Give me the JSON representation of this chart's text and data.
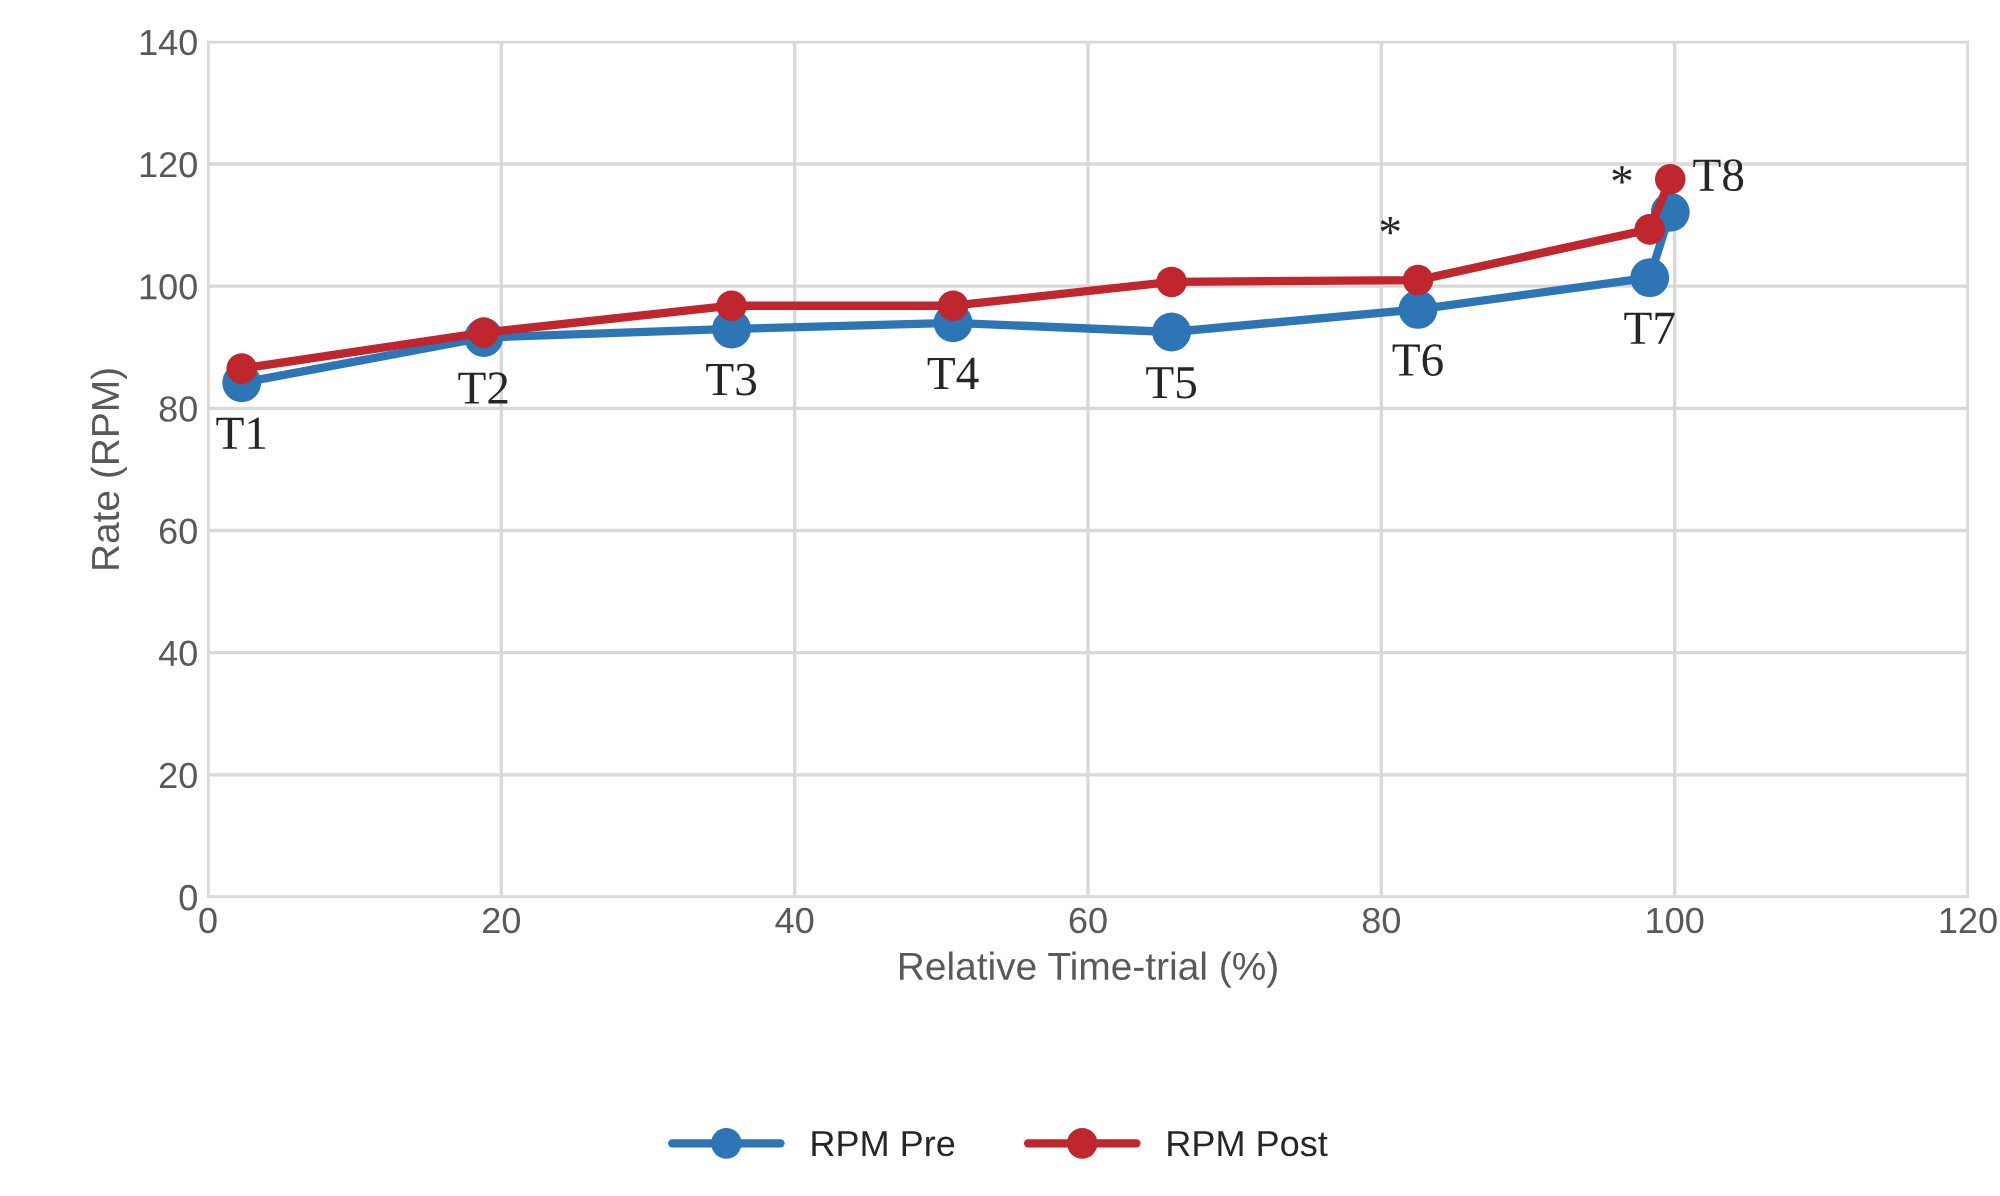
{
  "chart_data": {
    "type": "line",
    "xlabel": "Relative Time-trial (%)",
    "ylabel": "Rate (RPM)",
    "xlim": [
      0,
      120
    ],
    "xticks": [
      0,
      20,
      40,
      60,
      80,
      100,
      120
    ],
    "ylim": [
      0,
      140
    ],
    "yticks": [
      0,
      20,
      40,
      60,
      80,
      100,
      120,
      140
    ],
    "x": [
      2.3,
      18.8,
      35.7,
      50.8,
      65.7,
      82.5,
      98.3,
      99.7
    ],
    "series": [
      {
        "name": "RPM Pre",
        "color": "#2e75b6",
        "values": [
          84.2,
          91.6,
          93.0,
          94.0,
          92.5,
          96.2,
          101.4,
          112.1
        ]
      },
      {
        "name": "RPM Post",
        "color": "#c0262d",
        "values": [
          86.5,
          92.4,
          96.8,
          96.8,
          100.7,
          101.0,
          109.3,
          117.5
        ]
      }
    ],
    "annotations": [
      {
        "text": "T1",
        "x": 2.3,
        "y": 84.2
      },
      {
        "text": "T2",
        "x": 18.8,
        "y": 91.6
      },
      {
        "text": "T3",
        "x": 35.7,
        "y": 93.0
      },
      {
        "text": "T4",
        "x": 50.8,
        "y": 94.0
      },
      {
        "text": "T5",
        "x": 65.7,
        "y": 92.5
      },
      {
        "text": "T6",
        "x": 82.5,
        "y": 96.2
      },
      {
        "text": "T7",
        "x": 98.3,
        "y": 101.4
      },
      {
        "text": "T8",
        "x": 99.7,
        "y": 117.5
      },
      {
        "text": "*",
        "x": 82.5,
        "y": 101.0
      },
      {
        "text": "*",
        "x": 98.3,
        "y": 109.3
      }
    ],
    "grid": true,
    "legend": "bottom",
    "marker": "circle",
    "line_style": "solid"
  }
}
